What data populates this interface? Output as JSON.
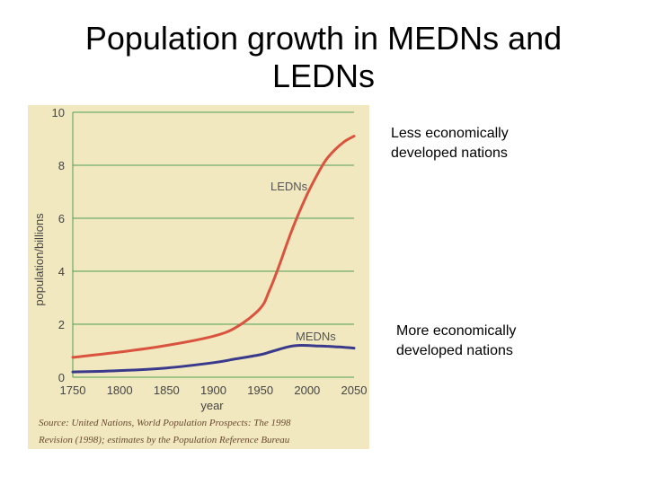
{
  "slide": {
    "title_line1": "Population growth in MEDNs and",
    "title_line2": "LEDNs"
  },
  "notes": {
    "ledn_line1": "Less economically",
    "ledn_line2": "developed nations",
    "medn_line1": "More economically",
    "medn_line2": "developed nations"
  },
  "colors": {
    "panel": "#f1e8bf",
    "grid": "#4f9e4f",
    "ledn_line": "#d9533f",
    "medn_line": "#3a3a8c",
    "axis_text": "#444444",
    "source_text": "#6a4a30"
  },
  "chart_data": {
    "type": "line",
    "xlabel": "year",
    "ylabel": "population/billions",
    "xlim": [
      1750,
      2050
    ],
    "ylim": [
      0,
      10
    ],
    "x_ticks": [
      "1750",
      "1800",
      "1850",
      "1900",
      "1950",
      "2000",
      "2050"
    ],
    "y_ticks": [
      "0",
      "2",
      "4",
      "6",
      "8",
      "10"
    ],
    "grid": true,
    "series": [
      {
        "name": "LEDNs",
        "x": [
          1750,
          1800,
          1850,
          1900,
          1925,
          1950,
          1960,
          1970,
          1980,
          1990,
          2000,
          2010,
          2020,
          2030,
          2040,
          2050
        ],
        "y": [
          0.75,
          0.95,
          1.2,
          1.55,
          1.9,
          2.6,
          3.3,
          4.2,
          5.2,
          6.1,
          6.9,
          7.6,
          8.2,
          8.6,
          8.9,
          9.1
        ]
      },
      {
        "name": "MEDNs",
        "x": [
          1750,
          1800,
          1850,
          1900,
          1925,
          1950,
          1960,
          1970,
          1980,
          1990,
          2000,
          2010,
          2020,
          2030,
          2040,
          2050
        ],
        "y": [
          0.2,
          0.25,
          0.35,
          0.55,
          0.7,
          0.85,
          0.95,
          1.05,
          1.15,
          1.2,
          1.2,
          1.18,
          1.17,
          1.15,
          1.13,
          1.1
        ]
      }
    ],
    "source_line1": "Source: United Nations, World Population Prospects: The 1998",
    "source_line2": "Revision (1998); estimates by the Population Reference Bureau"
  }
}
